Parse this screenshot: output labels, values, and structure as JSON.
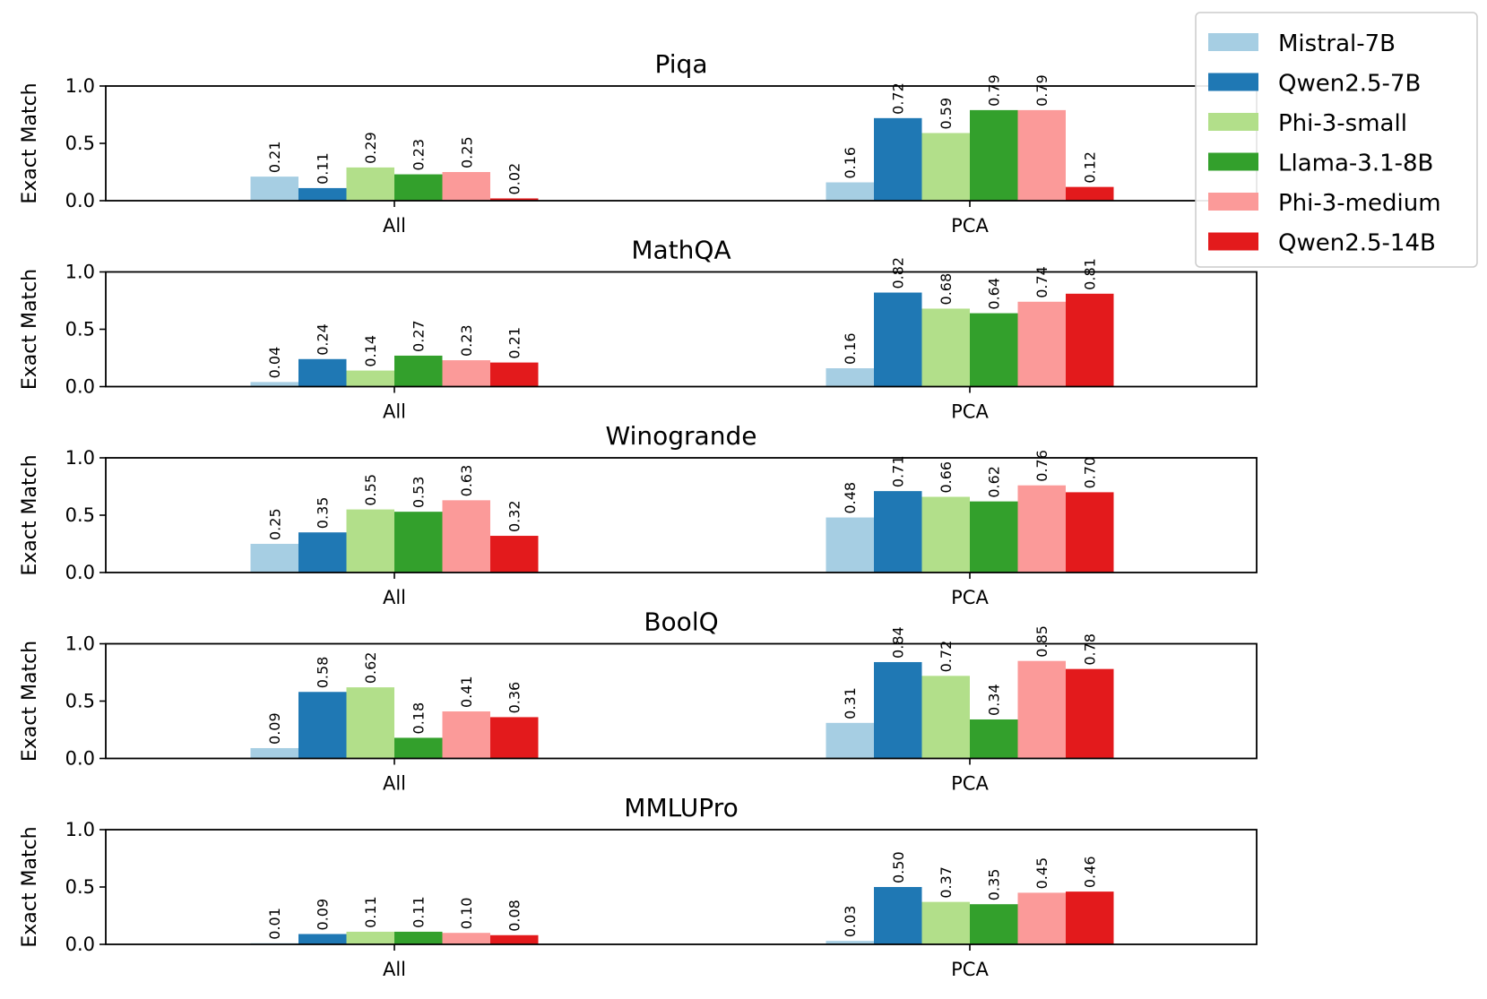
{
  "chart_data": {
    "type": "bar",
    "legend": {
      "placement": "top-right",
      "entries": [
        "Mistral-7B",
        "Qwen2.5-7B",
        "Phi-3-small",
        "Llama-3.1-8B",
        "Phi-3-medium",
        "Qwen2.5-14B"
      ]
    },
    "series_colors": [
      "#a6cee3",
      "#1f78b4",
      "#b2df8a",
      "#33a02c",
      "#fb9a99",
      "#e31a1c"
    ],
    "categories": [
      "All",
      "PCA"
    ],
    "ylabel": "Exact Match",
    "ylim": [
      0,
      1.0
    ],
    "yticks": [
      "0.0",
      "0.5",
      "1.0"
    ],
    "panels": [
      {
        "title": "Piqa",
        "series": [
          {
            "name": "Mistral-7B",
            "values": [
              0.21,
              0.16
            ],
            "labels": [
              "0.21",
              "0.16"
            ]
          },
          {
            "name": "Qwen2.5-7B",
            "values": [
              0.11,
              0.72
            ],
            "labels": [
              "0.11",
              "0.72"
            ]
          },
          {
            "name": "Phi-3-small",
            "values": [
              0.29,
              0.59
            ],
            "labels": [
              "0.29",
              "0.59"
            ]
          },
          {
            "name": "Llama-3.1-8B",
            "values": [
              0.23,
              0.79
            ],
            "labels": [
              "0.23",
              "0.79"
            ]
          },
          {
            "name": "Phi-3-medium",
            "values": [
              0.25,
              0.79
            ],
            "labels": [
              "0.25",
              "0.79"
            ]
          },
          {
            "name": "Qwen2.5-14B",
            "values": [
              0.02,
              0.12
            ],
            "labels": [
              "0.02",
              "0.12"
            ]
          }
        ]
      },
      {
        "title": "MathQA",
        "series": [
          {
            "name": "Mistral-7B",
            "values": [
              0.04,
              0.16
            ],
            "labels": [
              "0.04",
              "0.16"
            ]
          },
          {
            "name": "Qwen2.5-7B",
            "values": [
              0.24,
              0.82
            ],
            "labels": [
              "0.24",
              "0.82"
            ]
          },
          {
            "name": "Phi-3-small",
            "values": [
              0.14,
              0.68
            ],
            "labels": [
              "0.14",
              "0.68"
            ]
          },
          {
            "name": "Llama-3.1-8B",
            "values": [
              0.27,
              0.64
            ],
            "labels": [
              "0.27",
              "0.64"
            ]
          },
          {
            "name": "Phi-3-medium",
            "values": [
              0.23,
              0.74
            ],
            "labels": [
              "0.23",
              "0.74"
            ]
          },
          {
            "name": "Qwen2.5-14B",
            "values": [
              0.21,
              0.81
            ],
            "labels": [
              "0.21",
              "0.81"
            ]
          }
        ]
      },
      {
        "title": "Winogrande",
        "series": [
          {
            "name": "Mistral-7B",
            "values": [
              0.25,
              0.48
            ],
            "labels": [
              "0.25",
              "0.48"
            ]
          },
          {
            "name": "Qwen2.5-7B",
            "values": [
              0.35,
              0.71
            ],
            "labels": [
              "0.35",
              "0.71"
            ]
          },
          {
            "name": "Phi-3-small",
            "values": [
              0.55,
              0.66
            ],
            "labels": [
              "0.55",
              "0.66"
            ]
          },
          {
            "name": "Llama-3.1-8B",
            "values": [
              0.53,
              0.62
            ],
            "labels": [
              "0.53",
              "0.62"
            ]
          },
          {
            "name": "Phi-3-medium",
            "values": [
              0.63,
              0.76
            ],
            "labels": [
              "0.63",
              "0.76"
            ]
          },
          {
            "name": "Qwen2.5-14B",
            "values": [
              0.32,
              0.7
            ],
            "labels": [
              "0.32",
              "0.70"
            ]
          }
        ]
      },
      {
        "title": "BoolQ",
        "series": [
          {
            "name": "Mistral-7B",
            "values": [
              0.09,
              0.31
            ],
            "labels": [
              "0.09",
              "0.31"
            ]
          },
          {
            "name": "Qwen2.5-7B",
            "values": [
              0.58,
              0.84
            ],
            "labels": [
              "0.58",
              "0.84"
            ]
          },
          {
            "name": "Phi-3-small",
            "values": [
              0.62,
              0.72
            ],
            "labels": [
              "0.62",
              "0.72"
            ]
          },
          {
            "name": "Llama-3.1-8B",
            "values": [
              0.18,
              0.34
            ],
            "labels": [
              "0.18",
              "0.34"
            ]
          },
          {
            "name": "Phi-3-medium",
            "values": [
              0.41,
              0.85
            ],
            "labels": [
              "0.41",
              "0.85"
            ]
          },
          {
            "name": "Qwen2.5-14B",
            "values": [
              0.36,
              0.78
            ],
            "labels": [
              "0.36",
              "0.78"
            ]
          }
        ]
      },
      {
        "title": "MMLUPro",
        "series": [
          {
            "name": "Mistral-7B",
            "values": [
              0.01,
              0.03
            ],
            "labels": [
              "0.01",
              "0.03"
            ]
          },
          {
            "name": "Qwen2.5-7B",
            "values": [
              0.09,
              0.5
            ],
            "labels": [
              "0.09",
              "0.50"
            ]
          },
          {
            "name": "Phi-3-small",
            "values": [
              0.11,
              0.37
            ],
            "labels": [
              "0.11",
              "0.37"
            ]
          },
          {
            "name": "Llama-3.1-8B",
            "values": [
              0.11,
              0.35
            ],
            "labels": [
              "0.11",
              "0.35"
            ]
          },
          {
            "name": "Phi-3-medium",
            "values": [
              0.1,
              0.45
            ],
            "labels": [
              "0.10",
              "0.45"
            ]
          },
          {
            "name": "Qwen2.5-14B",
            "values": [
              0.08,
              0.46
            ],
            "labels": [
              "0.08",
              "0.46"
            ]
          }
        ]
      }
    ]
  }
}
